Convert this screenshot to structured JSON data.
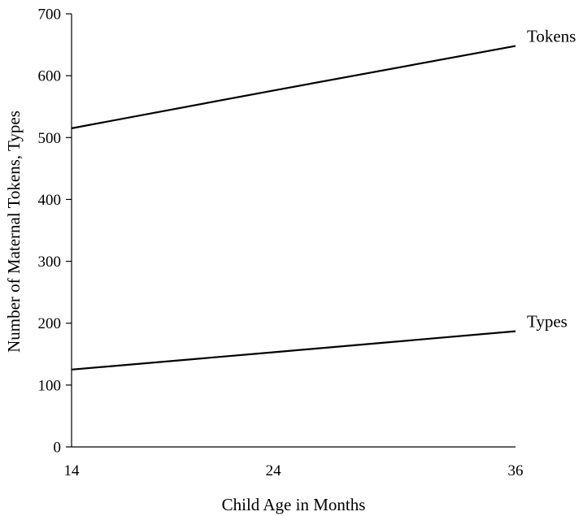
{
  "chart_data": {
    "type": "line",
    "title": "",
    "xlabel": "Child Age in Months",
    "ylabel": "Number of Maternal Tokens, Types",
    "x": [
      14,
      24,
      36
    ],
    "x_tick_labels": [
      "14",
      "24",
      "36"
    ],
    "ylim": [
      0,
      700
    ],
    "y_ticks": [
      0,
      100,
      200,
      300,
      400,
      500,
      600,
      700
    ],
    "y_tick_labels": [
      "0",
      "100",
      "200",
      "300",
      "400",
      "500",
      "600",
      "700"
    ],
    "grid": false,
    "legend": "direct labels at line ends",
    "series": [
      {
        "name": "Tokens",
        "values": [
          515,
          576,
          648
        ]
      },
      {
        "name": "Types",
        "values": [
          125,
          153,
          187
        ]
      }
    ],
    "line_color": "#000000"
  }
}
